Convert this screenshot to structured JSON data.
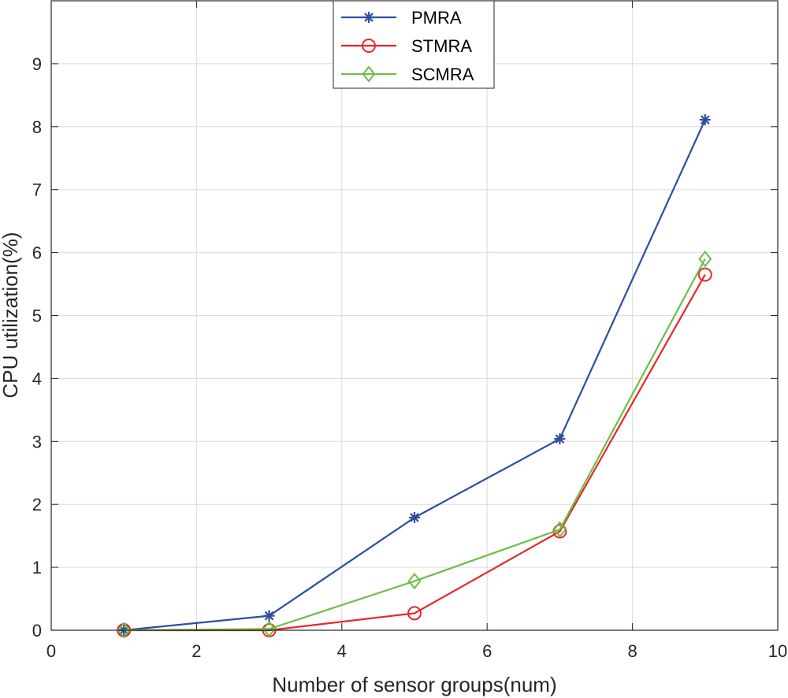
{
  "chart_data": {
    "type": "line",
    "title": "",
    "xlabel": "Number of sensor groups(num)",
    "ylabel": "CPU utilization(%)",
    "xlim": [
      0,
      10
    ],
    "ylim": [
      0,
      10
    ],
    "xticks": [
      0,
      2,
      4,
      6,
      8,
      10
    ],
    "yticks": [
      0,
      1,
      2,
      3,
      4,
      5,
      6,
      7,
      8,
      9
    ],
    "grid": true,
    "legend_position": "top-center",
    "x": [
      1,
      3,
      5,
      7,
      9
    ],
    "series": [
      {
        "name": "PMRA",
        "values": [
          0.0,
          0.23,
          1.79,
          3.04,
          8.11
        ],
        "color": "#2e4e9e",
        "marker": "asterisk"
      },
      {
        "name": "STMRA",
        "values": [
          0.0,
          0.0,
          0.27,
          1.57,
          5.65
        ],
        "color": "#e8262b",
        "marker": "circle"
      },
      {
        "name": "SCMRA",
        "values": [
          0.0,
          0.02,
          0.78,
          1.6,
          5.9
        ],
        "color": "#6bbe45",
        "marker": "diamond"
      }
    ]
  }
}
